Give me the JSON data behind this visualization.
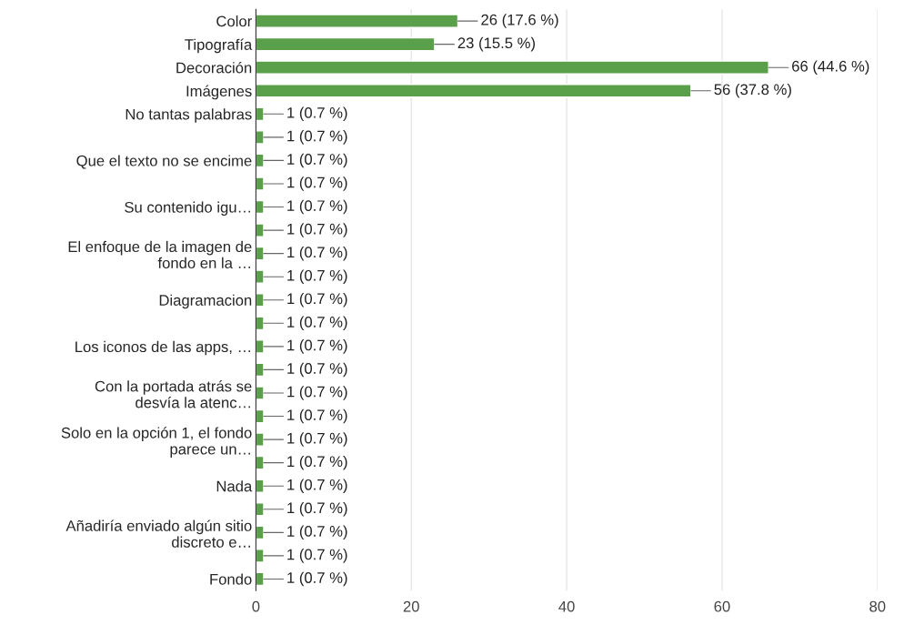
{
  "chart_data": {
    "type": "bar",
    "orientation": "horizontal",
    "categories": [
      "Color",
      "Tipografía",
      "Decoración",
      "Imágenes",
      "No tantas palabras",
      null,
      "Que el texto no se encime",
      null,
      "Su contenido igu…",
      null,
      "El enfoque de la imagen de\nfondo en la …",
      null,
      "Diagramacion",
      null,
      "Los iconos de las apps, …",
      null,
      "Con la portada atrás se\ndesvía la atenc…",
      null,
      "Solo en la opción 1, el fondo\nparece un…",
      null,
      "Nada",
      null,
      "Añadiría enviado algún sitio\ndiscreto e…",
      null,
      "Fondo"
    ],
    "values": [
      26,
      23,
      66,
      56,
      1,
      1,
      1,
      1,
      1,
      1,
      1,
      1,
      1,
      1,
      1,
      1,
      1,
      1,
      1,
      1,
      1,
      1,
      1,
      1,
      1
    ],
    "value_labels": [
      "26 (17.6 %)",
      "23 (15.5 %)",
      "66 (44.6 %)",
      "56 (37.8 %)",
      "1 (0.7 %)",
      "1 (0.7 %)",
      "1 (0.7 %)",
      "1 (0.7 %)",
      "1 (0.7 %)",
      "1 (0.7 %)",
      "1 (0.7 %)",
      "1 (0.7 %)",
      "1 (0.7 %)",
      "1 (0.7 %)",
      "1 (0.7 %)",
      "1 (0.7 %)",
      "1 (0.7 %)",
      "1 (0.7 %)",
      "1 (0.7 %)",
      "1 (0.7 %)",
      "1 (0.7 %)",
      "1 (0.7 %)",
      "1 (0.7 %)",
      "1 (0.7 %)",
      "1 (0.7 %)"
    ],
    "color": "#5aa04a",
    "xlim": [
      0,
      80
    ],
    "xticks": [
      0,
      20,
      40,
      60,
      80
    ],
    "grid": "x"
  }
}
